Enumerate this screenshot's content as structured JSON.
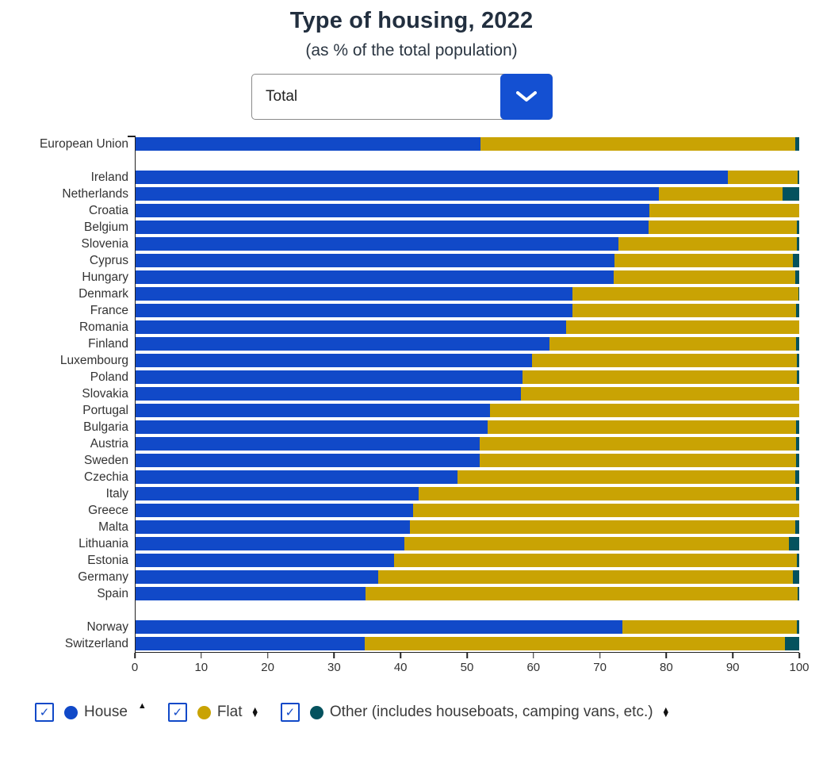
{
  "header": {
    "title": "Type of housing, 2022",
    "subtitle": "(as % of the total population)"
  },
  "dropdown": {
    "value": "Total"
  },
  "colors": {
    "house": "#1149c8",
    "flat": "#c9a303",
    "other": "#04525e",
    "accent": "#1450d2",
    "axis": "#222222"
  },
  "icons": {
    "check": "✓",
    "sort_asc": "▲",
    "sort_desc": "▼",
    "chevron": "chevron-down"
  },
  "chart_data": {
    "type": "bar",
    "orientation": "horizontal",
    "stacked": true,
    "title": "Type of housing, 2022",
    "subtitle": "(as % of the total population)",
    "xlabel": "",
    "ylabel": "",
    "xlim": [
      0,
      100
    ],
    "x_ticks": [
      0,
      10,
      20,
      30,
      40,
      50,
      60,
      70,
      80,
      90,
      100
    ],
    "grid": false,
    "gap_after_indices": [
      0,
      26
    ],
    "categories": [
      "European Union",
      "Ireland",
      "Netherlands",
      "Croatia",
      "Belgium",
      "Slovenia",
      "Cyprus",
      "Hungary",
      "Denmark",
      "France",
      "Romania",
      "Finland",
      "Luxembourg",
      "Poland",
      "Slovakia",
      "Portugal",
      "Bulgaria",
      "Austria",
      "Sweden",
      "Czechia",
      "Italy",
      "Greece",
      "Malta",
      "Lithuania",
      "Estonia",
      "Germany",
      "Spain",
      "Norway",
      "Switzerland"
    ],
    "series": [
      {
        "name": "House",
        "key": "house",
        "values": [
          52.0,
          89.3,
          78.8,
          77.4,
          77.3,
          72.8,
          72.2,
          72.1,
          65.8,
          65.8,
          64.9,
          62.4,
          59.7,
          58.3,
          58.1,
          53.4,
          53.0,
          51.9,
          51.8,
          48.5,
          42.6,
          41.8,
          41.3,
          40.5,
          38.9,
          36.5,
          34.6,
          73.4,
          34.5
        ]
      },
      {
        "name": "Flat",
        "key": "flat",
        "values": [
          47.4,
          10.5,
          18.7,
          22.6,
          22.3,
          26.8,
          26.8,
          27.3,
          34.1,
          33.7,
          35.1,
          37.1,
          39.9,
          41.4,
          41.9,
          46.6,
          46.5,
          47.6,
          47.7,
          50.9,
          56.9,
          58.2,
          58.1,
          58.0,
          60.7,
          62.5,
          65.2,
          26.3,
          63.3
        ]
      },
      {
        "name": "Other",
        "key": "other",
        "values": [
          0.6,
          0.2,
          2.5,
          0.0,
          0.4,
          0.4,
          1.0,
          0.6,
          0.1,
          0.5,
          0.0,
          0.5,
          0.4,
          0.3,
          0.0,
          0.0,
          0.5,
          0.5,
          0.5,
          0.6,
          0.5,
          0.0,
          0.6,
          1.5,
          0.4,
          1.0,
          0.2,
          0.3,
          2.2
        ]
      }
    ],
    "legend_position": "bottom"
  },
  "legend": {
    "items": [
      {
        "label": "House",
        "checked": true,
        "sort": "asc"
      },
      {
        "label": "Flat",
        "checked": true,
        "sort": "both"
      },
      {
        "label": "Other (includes houseboats, camping vans, etc.)",
        "checked": true,
        "sort": "both"
      }
    ]
  }
}
